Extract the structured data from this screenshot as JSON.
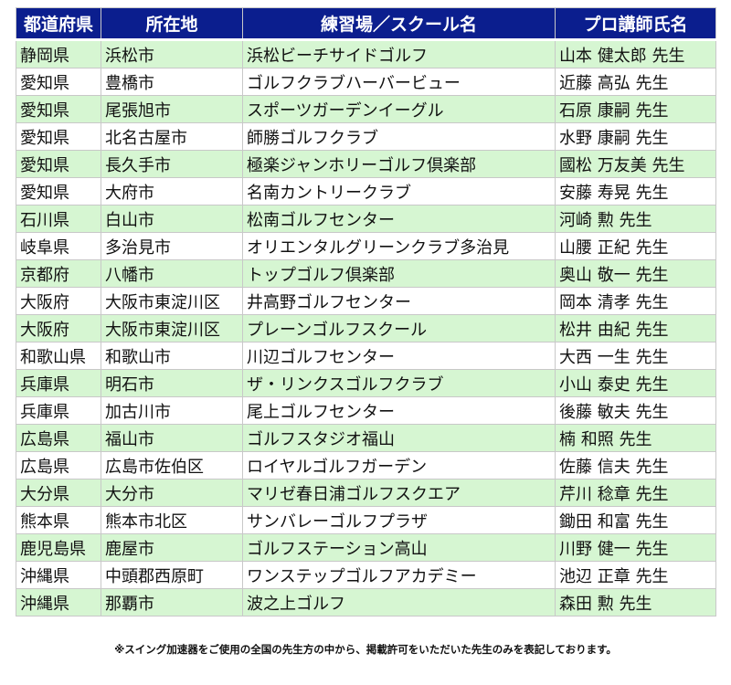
{
  "headers": [
    "都道府県",
    "所在地",
    "練習場／スクール名",
    "プロ講師氏名"
  ],
  "rows": [
    [
      "静岡県",
      "浜松市",
      "浜松ビーチサイドゴルフ",
      "山本 健太郎 先生"
    ],
    [
      "愛知県",
      "豊橋市",
      "ゴルフクラブハーバービュー",
      "近藤 高弘 先生"
    ],
    [
      "愛知県",
      "尾張旭市",
      "スポーツガーデンイーグル",
      "石原 康嗣 先生"
    ],
    [
      "愛知県",
      "北名古屋市",
      "師勝ゴルフクラブ",
      "水野 康嗣 先生"
    ],
    [
      "愛知県",
      "長久手市",
      "極楽ジャンホリーゴルフ倶楽部",
      "國松 万友美 先生"
    ],
    [
      "愛知県",
      "大府市",
      "名南カントリークラブ",
      "安藤 寿晃 先生"
    ],
    [
      "石川県",
      "白山市",
      "松南ゴルフセンター",
      "河崎 勲 先生"
    ],
    [
      "岐阜県",
      "多治見市",
      "オリエンタルグリーンクラブ多治見",
      "山腰 正紀 先生"
    ],
    [
      "京都府",
      "八幡市",
      "トップゴルフ倶楽部",
      "奥山 敬一 先生"
    ],
    [
      "大阪府",
      "大阪市東淀川区",
      "井高野ゴルフセンター",
      "岡本 清孝 先生"
    ],
    [
      "大阪府",
      "大阪市東淀川区",
      "プレーンゴルフスクール",
      "松井 由紀 先生"
    ],
    [
      "和歌山県",
      "和歌山市",
      "川辺ゴルフセンター",
      "大西 一生 先生"
    ],
    [
      "兵庫県",
      "明石市",
      "ザ・リンクスゴルフクラブ",
      "小山 泰史 先生"
    ],
    [
      "兵庫県",
      "加古川市",
      "尾上ゴルフセンター",
      "後藤 敏夫 先生"
    ],
    [
      "広島県",
      "福山市",
      "ゴルフスタジオ福山",
      "楠 和照 先生"
    ],
    [
      "広島県",
      "広島市佐伯区",
      "ロイヤルゴルフガーデン",
      "佐藤 信夫 先生"
    ],
    [
      "大分県",
      "大分市",
      "マリゼ春日浦ゴルフスクエア",
      "芹川 稔章 先生"
    ],
    [
      "熊本県",
      "熊本市北区",
      "サンバレーゴルフプラザ",
      "鋤田 和富 先生"
    ],
    [
      "鹿児島県",
      "鹿屋市",
      "ゴルフステーション高山",
      "川野 健一 先生"
    ],
    [
      "沖縄県",
      "中頭郡西原町",
      "ワンステップゴルフアカデミー",
      "池辺 正章 先生"
    ],
    [
      "沖縄県",
      "那覇市",
      "波之上ゴルフ",
      "森田 勲 先生"
    ]
  ],
  "footnote": "※スイング加速器をご使用の全国の先生方の中から、掲載許可をいただいた先生のみを表記しております。",
  "colors": {
    "header_bg": "#0b1e8e",
    "row_green": "#d6f6d2",
    "row_white": "#ffffff"
  }
}
